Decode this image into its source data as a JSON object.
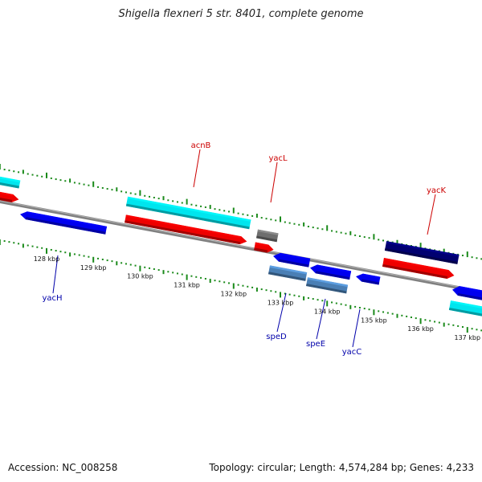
{
  "title": "Shigella flexneri 5 str. 8401, complete genome",
  "footer": {
    "accession": "Accession: NC_008258",
    "summary": "Topology: circular; Length: 4,574,284 bp; Genes: 4,233"
  },
  "colors": {
    "backbone": "#808080",
    "tick": "#1a8a1a",
    "forward_label": "#cc0000",
    "reverse_label": "#0000aa",
    "cyan": "#00e5ee",
    "red": "#ee0000",
    "blue": "#0000ee",
    "navy": "#000070",
    "steel": "#4a7fb5",
    "gray": "#6e6e6e"
  },
  "axis": {
    "unit": "kbp",
    "ticks": [
      "128 kbp",
      "129 kbp",
      "130 kbp",
      "131 kbp",
      "132 kbp",
      "133 kbp",
      "134 kbp",
      "135 kbp",
      "136 kbp",
      "137 kbp"
    ]
  },
  "genes": [
    {
      "name": "",
      "color": "cyan",
      "strand": "forward",
      "lane": 1
    },
    {
      "name": "",
      "color": "red",
      "strand": "forward",
      "lane": 2
    },
    {
      "name": "acnB",
      "color": "cyan",
      "strand": "forward",
      "lane": 1
    },
    {
      "name": "",
      "color": "red",
      "strand": "forward",
      "lane": 2
    },
    {
      "name": "",
      "color": "gray",
      "strand": "forward",
      "lane": 1
    },
    {
      "name": "yacL",
      "color": "red",
      "strand": "forward",
      "lane": 2
    },
    {
      "name": "yacK",
      "color": "navy",
      "strand": "forward",
      "lane": 1
    },
    {
      "name": "",
      "color": "red",
      "strand": "forward",
      "lane": 2
    },
    {
      "name": "yacH",
      "color": "blue",
      "strand": "reverse",
      "lane": 1
    },
    {
      "name": "",
      "color": "blue",
      "strand": "reverse",
      "lane": 1
    },
    {
      "name": "",
      "color": "blue",
      "strand": "reverse",
      "lane": 1
    },
    {
      "name": "",
      "color": "blue",
      "strand": "reverse",
      "lane": 1
    },
    {
      "name": "speD",
      "color": "steel",
      "strand": "reverse",
      "lane": 2
    },
    {
      "name": "speE",
      "color": "steel",
      "strand": "reverse",
      "lane": 2
    },
    {
      "name": "yacC",
      "color": "blue",
      "strand": "reverse",
      "lane": 1
    },
    {
      "name": "",
      "color": "cyan",
      "strand": "reverse",
      "lane": 2
    }
  ]
}
